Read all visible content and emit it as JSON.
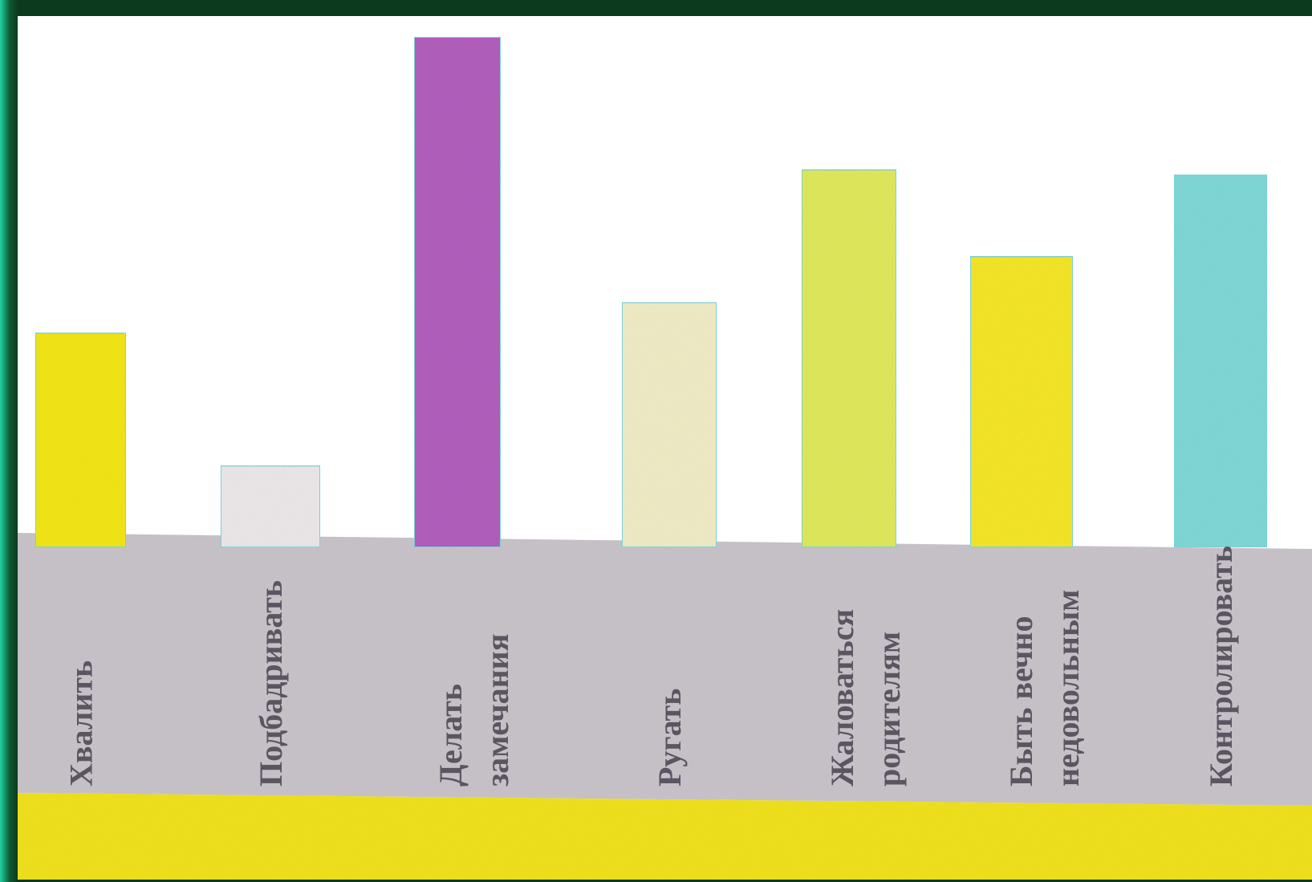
{
  "chart_data": {
    "type": "bar",
    "categories": [
      "Хвалить",
      "Подбадривать",
      "Делать замечания",
      "Ругать",
      "Жаловаться родителям",
      "Быть вечно недовольным",
      "Контролировать"
    ],
    "label_lines": [
      [
        "Хвалить"
      ],
      [
        "Подбадривать"
      ],
      [
        "Делать",
        "замечания"
      ],
      [
        "Ругать"
      ],
      [
        "Жаловаться",
        "родителям"
      ],
      [
        "Быть вечно",
        "недовольным"
      ],
      [
        "Контролировать"
      ]
    ],
    "values": [
      42,
      16,
      100,
      48,
      74,
      57,
      73
    ],
    "colors": [
      "#f2e619",
      "#ece8ea",
      "#b25fbd",
      "#f0ecc6",
      "#e0e95c",
      "#f5e627",
      "#7fd8d6"
    ],
    "title": "",
    "xlabel": "",
    "ylabel": "",
    "ylim": [
      0,
      100
    ],
    "grid": false,
    "legend": "none"
  }
}
